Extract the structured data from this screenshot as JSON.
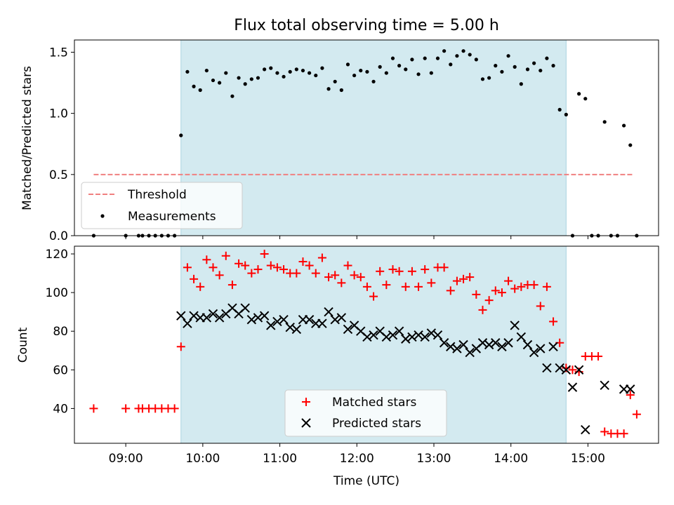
{
  "chart_data": [
    {
      "type": "scatter",
      "title": "Flux total observing time = 5.00 h",
      "ylabel": "Matched/Predicted stars",
      "xlim": [
        "08:20",
        "15:55"
      ],
      "ylim": [
        0,
        1.6
      ],
      "yticks": [
        0.0,
        0.5,
        1.0,
        1.5
      ],
      "ytick_labels": [
        "0.0",
        "0.5",
        "1.0",
        "1.5"
      ],
      "shaded_span": [
        "09:43",
        "14:43"
      ],
      "shaded_color": "#d3eaf0",
      "threshold": {
        "name": "Threshold",
        "y": 0.5,
        "x_range": [
          "08:35",
          "15:35"
        ],
        "color": "#f08080"
      },
      "series": [
        {
          "name": "Measurements",
          "color": "#000000",
          "x": [
            "08:35",
            "09:00",
            "09:10",
            "09:13",
            "09:18",
            "09:23",
            "09:28",
            "09:33",
            "09:38",
            "09:43",
            "09:48",
            "09:53",
            "09:58",
            "10:03",
            "10:08",
            "10:13",
            "10:18",
            "10:23",
            "10:28",
            "10:33",
            "10:38",
            "10:43",
            "10:48",
            "10:53",
            "10:58",
            "11:03",
            "11:08",
            "11:13",
            "11:18",
            "11:23",
            "11:28",
            "11:33",
            "11:38",
            "11:43",
            "11:48",
            "11:53",
            "11:58",
            "12:03",
            "12:08",
            "12:13",
            "12:18",
            "12:23",
            "12:28",
            "12:33",
            "12:38",
            "12:43",
            "12:48",
            "12:53",
            "12:58",
            "13:03",
            "13:08",
            "13:13",
            "13:18",
            "13:23",
            "13:28",
            "13:33",
            "13:38",
            "13:43",
            "13:48",
            "13:53",
            "13:58",
            "14:03",
            "14:08",
            "14:13",
            "14:18",
            "14:23",
            "14:28",
            "14:33",
            "14:38",
            "14:43",
            "14:48",
            "14:53",
            "14:58",
            "15:03",
            "15:08",
            "15:13",
            "15:18",
            "15:23",
            "15:28",
            "15:33",
            "15:38"
          ],
          "y": [
            0.0,
            0.0,
            0.0,
            0.0,
            0.0,
            0.0,
            0.0,
            0.0,
            0.0,
            0.82,
            1.34,
            1.22,
            1.19,
            1.35,
            1.27,
            1.25,
            1.33,
            1.14,
            1.29,
            1.24,
            1.28,
            1.29,
            1.36,
            1.37,
            1.33,
            1.3,
            1.34,
            1.36,
            1.35,
            1.33,
            1.31,
            1.37,
            1.2,
            1.26,
            1.19,
            1.4,
            1.31,
            1.35,
            1.34,
            1.26,
            1.38,
            1.33,
            1.45,
            1.39,
            1.36,
            1.44,
            1.32,
            1.45,
            1.33,
            1.45,
            1.51,
            1.4,
            1.47,
            1.51,
            1.48,
            1.44,
            1.28,
            1.29,
            1.39,
            1.34,
            1.47,
            1.38,
            1.24,
            1.36,
            1.41,
            1.35,
            1.45,
            1.39,
            1.03,
            0.99,
            0.0,
            1.16,
            1.12,
            0.0,
            0.0,
            0.93,
            0.0,
            0.0,
            0.9,
            0.74,
            0.0
          ]
        }
      ],
      "legend": {
        "entries": [
          "Threshold",
          "Measurements"
        ],
        "position": "lower left"
      }
    },
    {
      "type": "scatter",
      "xlabel": "Time (UTC)",
      "ylabel": "Count",
      "xlim": [
        "08:20",
        "15:55"
      ],
      "ylim": [
        22,
        124
      ],
      "yticks": [
        40,
        60,
        80,
        100,
        120
      ],
      "ytick_labels": [
        "40",
        "60",
        "80",
        "100",
        "120"
      ],
      "xticks": [
        "09:00",
        "10:00",
        "11:00",
        "12:00",
        "13:00",
        "14:00",
        "15:00"
      ],
      "shaded_span": [
        "09:43",
        "14:43"
      ],
      "series": [
        {
          "name": "Matched stars",
          "color": "#ff0000",
          "marker": "plus",
          "x": [
            "08:35",
            "09:00",
            "09:10",
            "09:13",
            "09:18",
            "09:23",
            "09:28",
            "09:33",
            "09:38",
            "09:43",
            "09:48",
            "09:53",
            "09:58",
            "10:03",
            "10:08",
            "10:13",
            "10:18",
            "10:23",
            "10:28",
            "10:33",
            "10:38",
            "10:43",
            "10:48",
            "10:53",
            "10:58",
            "11:03",
            "11:08",
            "11:13",
            "11:18",
            "11:23",
            "11:28",
            "11:33",
            "11:38",
            "11:43",
            "11:48",
            "11:53",
            "11:58",
            "12:03",
            "12:08",
            "12:13",
            "12:18",
            "12:23",
            "12:28",
            "12:33",
            "12:38",
            "12:43",
            "12:48",
            "12:53",
            "12:58",
            "13:03",
            "13:08",
            "13:13",
            "13:18",
            "13:23",
            "13:28",
            "13:33",
            "13:38",
            "13:43",
            "13:48",
            "13:53",
            "13:58",
            "14:03",
            "14:08",
            "14:13",
            "14:18",
            "14:23",
            "14:28",
            "14:33",
            "14:38",
            "14:43",
            "14:48",
            "14:53",
            "14:58",
            "15:03",
            "15:08",
            "15:13",
            "15:18",
            "15:23",
            "15:28",
            "15:33",
            "15:38"
          ],
          "y": [
            40,
            40,
            40,
            40,
            40,
            40,
            40,
            40,
            40,
            72,
            113,
            107,
            103,
            117,
            113,
            109,
            119,
            104,
            115,
            114,
            110,
            112,
            120,
            114,
            113,
            112,
            110,
            110,
            116,
            114,
            110,
            118,
            108,
            109,
            105,
            114,
            109,
            108,
            103,
            98,
            111,
            104,
            112,
            111,
            103,
            111,
            103,
            112,
            105,
            113,
            113,
            101,
            106,
            107,
            108,
            99,
            91,
            96,
            101,
            100,
            106,
            102,
            103,
            104,
            104,
            93,
            103,
            85,
            74,
            61,
            60,
            59,
            67,
            67,
            67,
            28,
            27,
            27,
            27,
            47,
            37
          ]
        },
        {
          "name": "Predicted stars",
          "color": "#000000",
          "marker": "x",
          "x": [
            "09:43",
            "09:48",
            "09:53",
            "09:58",
            "10:03",
            "10:08",
            "10:13",
            "10:18",
            "10:23",
            "10:28",
            "10:33",
            "10:38",
            "10:43",
            "10:48",
            "10:53",
            "10:58",
            "11:03",
            "11:08",
            "11:13",
            "11:18",
            "11:23",
            "11:28",
            "11:33",
            "11:38",
            "11:43",
            "11:48",
            "11:53",
            "11:58",
            "12:03",
            "12:08",
            "12:13",
            "12:18",
            "12:23",
            "12:28",
            "12:33",
            "12:38",
            "12:43",
            "12:48",
            "12:53",
            "12:58",
            "13:03",
            "13:08",
            "13:13",
            "13:18",
            "13:23",
            "13:28",
            "13:33",
            "13:38",
            "13:43",
            "13:48",
            "13:53",
            "13:58",
            "14:03",
            "14:08",
            "14:13",
            "14:18",
            "14:23",
            "14:28",
            "14:33",
            "14:38",
            "14:43",
            "14:48",
            "14:53",
            "14:58",
            "15:13",
            "15:28",
            "15:33"
          ],
          "y": [
            88,
            84,
            88,
            87,
            87,
            89,
            87,
            89,
            92,
            89,
            92,
            86,
            87,
            88,
            83,
            85,
            86,
            82,
            81,
            86,
            86,
            84,
            84,
            90,
            86,
            87,
            81,
            83,
            80,
            77,
            78,
            80,
            77,
            78,
            80,
            76,
            77,
            78,
            77,
            79,
            78,
            74,
            72,
            71,
            73,
            69,
            71,
            74,
            73,
            74,
            72,
            74,
            83,
            77,
            73,
            69,
            71,
            61,
            72,
            61,
            60,
            51,
            60,
            29,
            52,
            50,
            50
          ]
        }
      ],
      "legend": {
        "entries": [
          "Matched stars",
          "Predicted stars"
        ],
        "position": "lower center"
      }
    }
  ]
}
